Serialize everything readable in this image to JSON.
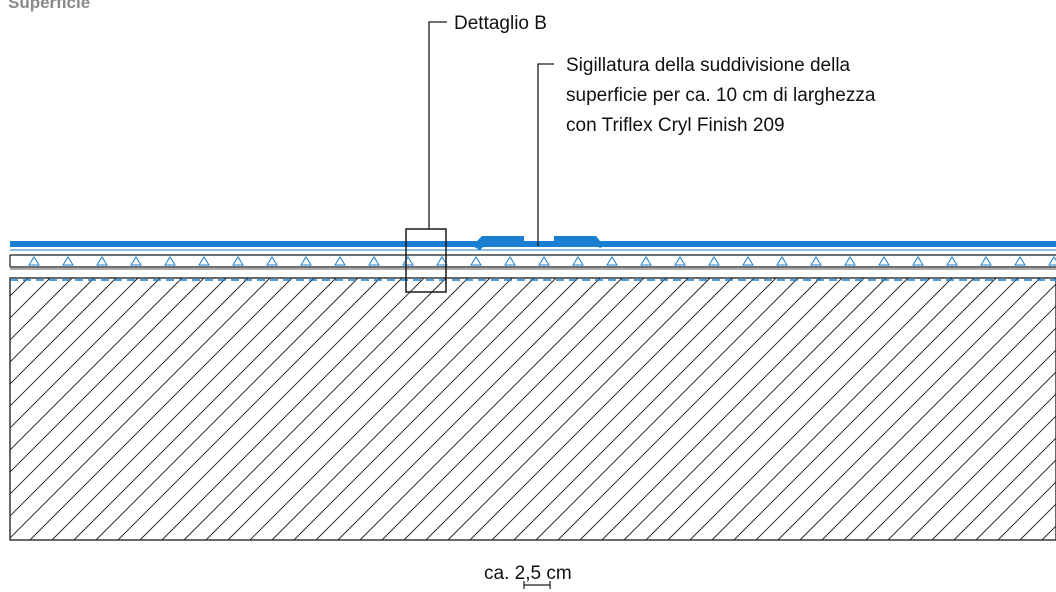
{
  "title": "Superficie",
  "labels": {
    "detail_b": "Dettaglio B",
    "seal_line1": "Sigillatura della suddivisione della",
    "seal_line2": "superficie per ca. 10 cm di larghezza",
    "seal_line3": "con Triflex Cryl Finish 209",
    "dimension_prefix": "ca. ",
    "dimension_value": "2,5",
    "dimension_unit": " cm"
  },
  "colors": {
    "accent_blue": "#1a7fd0",
    "line": "#1a1a1a",
    "title_gray": "#8a8a8a"
  }
}
